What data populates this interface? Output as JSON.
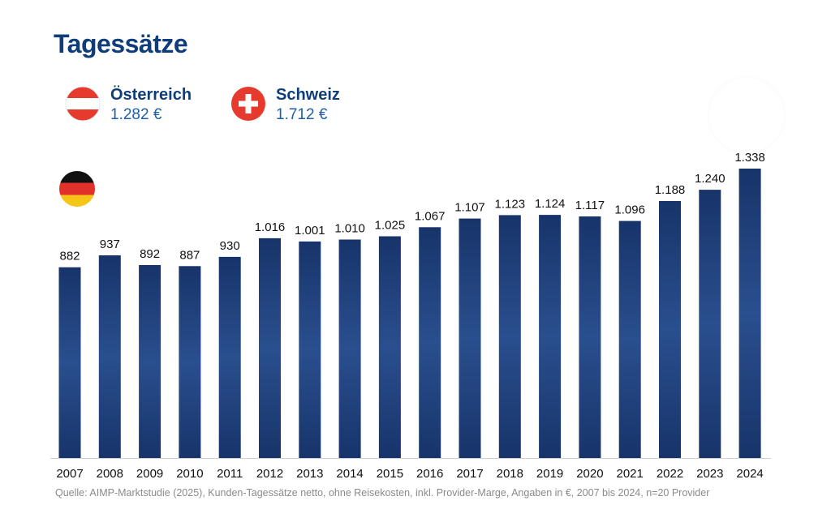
{
  "title": "Tagessätze",
  "countries": [
    {
      "name": "Österreich",
      "rate": "1.282 €",
      "flag": "austria-flag-icon"
    },
    {
      "name": "Schweiz",
      "rate": "1.712 €",
      "flag": "switzerland-flag-icon"
    }
  ],
  "germany_flag": "germany-flag-icon",
  "colors": {
    "title": "#0f3d7a",
    "rate": "#1f5fa6",
    "bar_dark": "#17346a",
    "bar_light": "#2a4f8e",
    "austria_red": "#e63a2e",
    "swiss_red": "#e63a2e"
  },
  "chart_data": {
    "type": "bar",
    "categories": [
      "2007",
      "2008",
      "2009",
      "2010",
      "2011",
      "2012",
      "2013",
      "2014",
      "2015",
      "2016",
      "2017",
      "2018",
      "2019",
      "2020",
      "2021",
      "2022",
      "2023",
      "2024"
    ],
    "values": [
      882,
      937,
      892,
      887,
      930,
      1016,
      1001,
      1010,
      1025,
      1067,
      1107,
      1123,
      1124,
      1117,
      1096,
      1188,
      1240,
      1338
    ],
    "value_labels": [
      "882",
      "937",
      "892",
      "887",
      "930",
      "1.016",
      "1.001",
      "1.010",
      "1.025",
      "1.067",
      "1.107",
      "1.123",
      "1.124",
      "1.117",
      "1.096",
      "1.188",
      "1.240",
      "1.338"
    ],
    "ylim": [
      0,
      1338
    ],
    "grid": false
  },
  "source": "Quelle: AIMP-Marktstudie (2025), Kunden-Tagessätze netto, ohne Reisekosten, inkl. Provider-Marge, Angaben in €, 2007 bis 2024, n=20 Provider"
}
